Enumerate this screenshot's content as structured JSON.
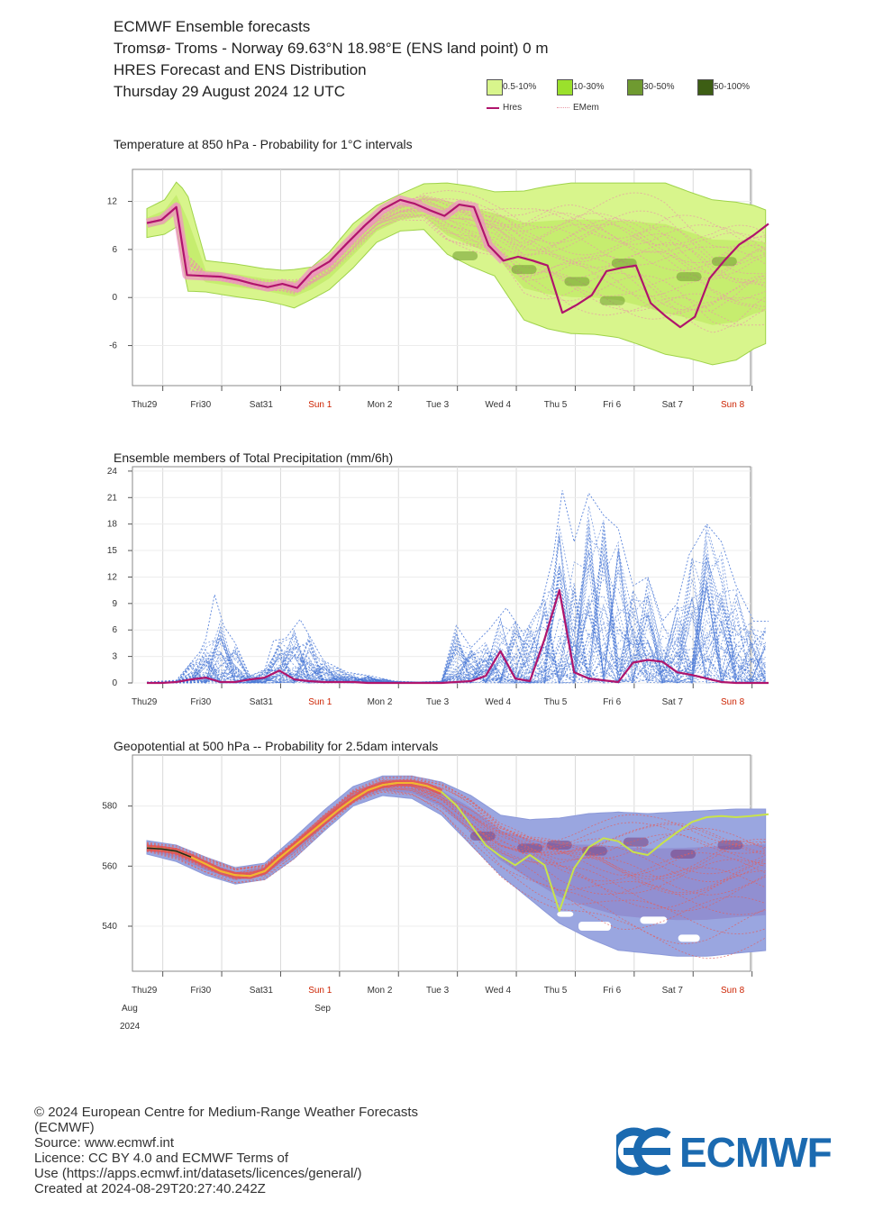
{
  "header": {
    "line1": "ECMWF Ensemble forecasts",
    "line2": "Tromsø- Troms - Norway 69.63°N 18.98°E (ENS land point) 0 m",
    "line3": "HRES Forecast and ENS Distribution",
    "line4": "Thursday 29 August 2024 12 UTC"
  },
  "legend": {
    "p1": "0.5-10%",
    "p2": "10-30%",
    "p3": "30-50%",
    "p4": "50-100%",
    "hres": "Hres",
    "emem": "EMem",
    "colors": {
      "p1": "#d8f58c",
      "p2": "#9be02c",
      "p3": "#6f9a30",
      "p4": "#3d5e14",
      "hres": "#b0146c",
      "emem": "#e89aa6"
    }
  },
  "days": [
    "Thu29",
    "Fri30",
    "Sat31",
    "Sun 1",
    "Mon 2",
    "Tue 3",
    "Wed 4",
    "Thu 5",
    "Fri 6",
    "Sat 7",
    "Sun 8"
  ],
  "weekend_color": "#cc2200",
  "month_labels": {
    "aug": "Aug",
    "year": "2024",
    "sep": "Sep"
  },
  "chart_data": [
    {
      "type": "line",
      "title": "Temperature at 850 hPa - Probability for 1°C intervals",
      "yticks": [
        12,
        6,
        0,
        -6
      ],
      "ylim": [
        -11,
        16
      ],
      "x_days": [
        0,
        10.7
      ],
      "series": [
        {
          "name": "Hres",
          "x": [
            0,
            0.25,
            0.5,
            0.68,
            0.95,
            1.25,
            1.55,
            1.8,
            2.05,
            2.3,
            2.55,
            2.8,
            3.1,
            3.4,
            3.7,
            4.0,
            4.3,
            4.55,
            4.8,
            5.05,
            5.3,
            5.55,
            5.8,
            6.05,
            6.3,
            6.55,
            6.8,
            7.05,
            7.3,
            7.55,
            7.8,
            8.05,
            8.3,
            8.55,
            8.8,
            9.05,
            9.3,
            9.55,
            9.8,
            10.05,
            10.3,
            10.55
          ],
          "y": [
            9.3,
            9.7,
            11.3,
            2.8,
            2.7,
            2.6,
            2.2,
            1.7,
            1.3,
            1.7,
            1.2,
            3.2,
            4.5,
            6.8,
            9.0,
            11.0,
            12.2,
            11.7,
            10.9,
            10.2,
            11.6,
            11.3,
            6.5,
            4.6,
            5.1,
            4.6,
            4.0,
            -1.9,
            -0.9,
            0.3,
            3.3,
            3.7,
            4.0,
            -0.7,
            -2.3,
            -3.7,
            -2.4,
            2.4,
            4.6,
            6.6,
            7.8,
            9.2
          ]
        }
      ],
      "ensemble": {
        "upper": [
          10.5,
          11.6,
          13.8,
          12.5,
          4.0,
          3.6,
          3.0,
          2.8,
          2.9,
          3.2,
          5.1,
          8.6,
          10.9,
          12.3,
          13.6,
          13.7,
          13.3,
          12.6,
          12.7,
          13.3,
          13.7,
          13.7,
          13.7,
          13.7,
          13.7,
          12.6,
          11.6,
          11.3,
          10.9,
          10.2
        ],
        "lower": [
          8.1,
          8.5,
          9.4,
          1.4,
          1.3,
          0.7,
          0.2,
          -0.3,
          -0.7,
          0.4,
          1.6,
          4.3,
          7.5,
          8.9,
          9.1,
          6.0,
          4.5,
          3.3,
          -2.2,
          -3.3,
          -3.9,
          -4.0,
          -4.4,
          -5.4,
          -6.5,
          -7.0,
          -7.8,
          -7.2,
          -5.8,
          -5.0
        ],
        "x": [
          0,
          0.3,
          0.5,
          0.68,
          1.0,
          1.5,
          2.0,
          2.3,
          2.5,
          2.8,
          3.1,
          3.5,
          3.9,
          4.3,
          4.7,
          5.1,
          5.5,
          5.9,
          6.4,
          6.8,
          7.2,
          7.6,
          8.0,
          8.4,
          8.8,
          9.2,
          9.6,
          10.0,
          10.3,
          10.55
        ]
      }
    },
    {
      "type": "line",
      "title": "Ensemble members of Total Precipitation (mm/6h)",
      "yticks": [
        24,
        21,
        18,
        15,
        12,
        9,
        6,
        3,
        0
      ],
      "ylim": [
        0,
        24.5
      ],
      "series": [
        {
          "name": "Hres",
          "x": [
            0,
            0.25,
            0.5,
            0.75,
            1.0,
            1.25,
            1.5,
            1.75,
            2.0,
            2.25,
            2.5,
            2.75,
            3.0,
            3.25,
            3.5,
            3.75,
            4.0,
            4.25,
            4.5,
            4.75,
            5.0,
            5.25,
            5.5,
            5.75,
            6.0,
            6.25,
            6.5,
            6.75,
            7.0,
            7.25,
            7.5,
            7.75,
            8.0,
            8.25,
            8.5,
            8.75,
            9.0,
            9.25,
            9.5,
            9.75,
            10.0,
            10.25,
            10.55
          ],
          "y": [
            0,
            0,
            0.1,
            0.4,
            0.6,
            0.1,
            0.1,
            0.4,
            0.6,
            1.4,
            0.4,
            0.2,
            0.1,
            0.1,
            0.1,
            0,
            0,
            0,
            0,
            0,
            0,
            0.1,
            0.2,
            0.8,
            3.6,
            0.5,
            0.2,
            5.0,
            10.5,
            1.2,
            0.5,
            0.3,
            0.1,
            2.3,
            2.6,
            2.4,
            1.2,
            0.9,
            0.5,
            0.1,
            0,
            0,
            0
          ]
        }
      ],
      "ensemble_max": {
        "x": [
          0,
          0.5,
          0.9,
          1.0,
          1.15,
          1.3,
          1.5,
          1.75,
          2.0,
          2.15,
          2.35,
          2.6,
          3.0,
          3.4,
          3.8,
          4.2,
          4.6,
          5.0,
          5.25,
          5.5,
          5.8,
          6.1,
          6.4,
          6.7,
          6.9,
          7.05,
          7.25,
          7.5,
          7.75,
          8.0,
          8.25,
          8.5,
          8.75,
          9.0,
          9.2,
          9.5,
          9.75,
          10.0,
          10.3,
          10.55
        ],
        "y": [
          0.1,
          0.3,
          3.5,
          5.0,
          10.0,
          6.5,
          4.5,
          0.8,
          1.5,
          4.8,
          5.0,
          7.2,
          2.5,
          1.2,
          0.8,
          0.2,
          0.1,
          0.2,
          6.5,
          4.0,
          6.0,
          8.5,
          5.5,
          9.0,
          14.5,
          21.8,
          16.0,
          21.5,
          19.0,
          17.5,
          11.0,
          12.0,
          7.0,
          9.0,
          14.5,
          18.0,
          16.0,
          11.0,
          7.0,
          7.0
        ]
      }
    },
    {
      "type": "line",
      "title": "Geopotential at 500 hPa -- Probability for 2.5dam intervals",
      "yticks": [
        580,
        560,
        540
      ],
      "ylim": [
        525,
        597
      ],
      "series": [
        {
          "name": "Hres",
          "x": [
            0,
            0.25,
            0.5,
            0.75,
            1.0,
            1.25,
            1.5,
            1.75,
            2.0,
            2.25,
            2.5,
            2.75,
            3.0,
            3.25,
            3.5,
            3.75,
            4.0,
            4.25,
            4.5,
            4.75,
            5.0,
            5.25,
            5.5,
            5.75,
            6.0,
            6.25,
            6.5,
            6.75,
            7.0,
            7.25,
            7.5,
            7.75,
            8.0,
            8.25,
            8.5,
            8.75,
            9.0,
            9.25,
            9.5,
            9.75,
            10.0,
            10.25,
            10.55
          ],
          "y": [
            566,
            565.7,
            565,
            563,
            560.7,
            558.3,
            557,
            556.7,
            558.3,
            562.7,
            566.7,
            570.7,
            574.7,
            578.7,
            582.3,
            585.3,
            587,
            587.7,
            587.7,
            586.7,
            584.7,
            580.3,
            573.7,
            567,
            563.3,
            560.3,
            563.7,
            560.3,
            545,
            559.3,
            566.3,
            569.3,
            568.3,
            564.7,
            563.7,
            567.7,
            571.3,
            574.7,
            576.3,
            576.7,
            576.3,
            576.7,
            577.3
          ]
        }
      ],
      "ensemble": {
        "x": [
          0,
          0.5,
          1.0,
          1.5,
          2.0,
          2.5,
          3.0,
          3.5,
          4.0,
          4.5,
          5.0,
          5.5,
          6.0,
          6.5,
          7.0,
          7.5,
          8.0,
          8.5,
          9.0,
          9.5,
          10.0,
          10.55
        ],
        "upper": [
          568.5,
          567,
          563,
          559.5,
          561,
          569.5,
          578.5,
          586.5,
          590,
          590,
          588,
          583.5,
          577,
          575.5,
          576,
          577.5,
          578,
          577.5,
          578,
          578.5,
          579,
          579
        ],
        "lower": [
          564,
          561.5,
          557,
          554,
          555.5,
          562.5,
          571.5,
          580,
          583.5,
          582.5,
          577,
          567,
          557,
          549,
          541,
          536,
          532,
          531,
          530,
          530,
          531,
          532
        ]
      }
    }
  ],
  "footer": {
    "line1": "© 2024 European Centre for Medium-Range Weather Forecasts",
    "line2": "(ECMWF)",
    "line3": "Source: www.ecmwf.int",
    "line4": "Licence: CC BY 4.0 and ECMWF Terms of",
    "line5": "Use (https://apps.ecmwf.int/datasets/licences/general/)",
    "line6": "Created at 2024-08-29T20:27:40.242Z"
  },
  "logo": {
    "text": "ECMWF",
    "color": "#1b6ab0"
  }
}
